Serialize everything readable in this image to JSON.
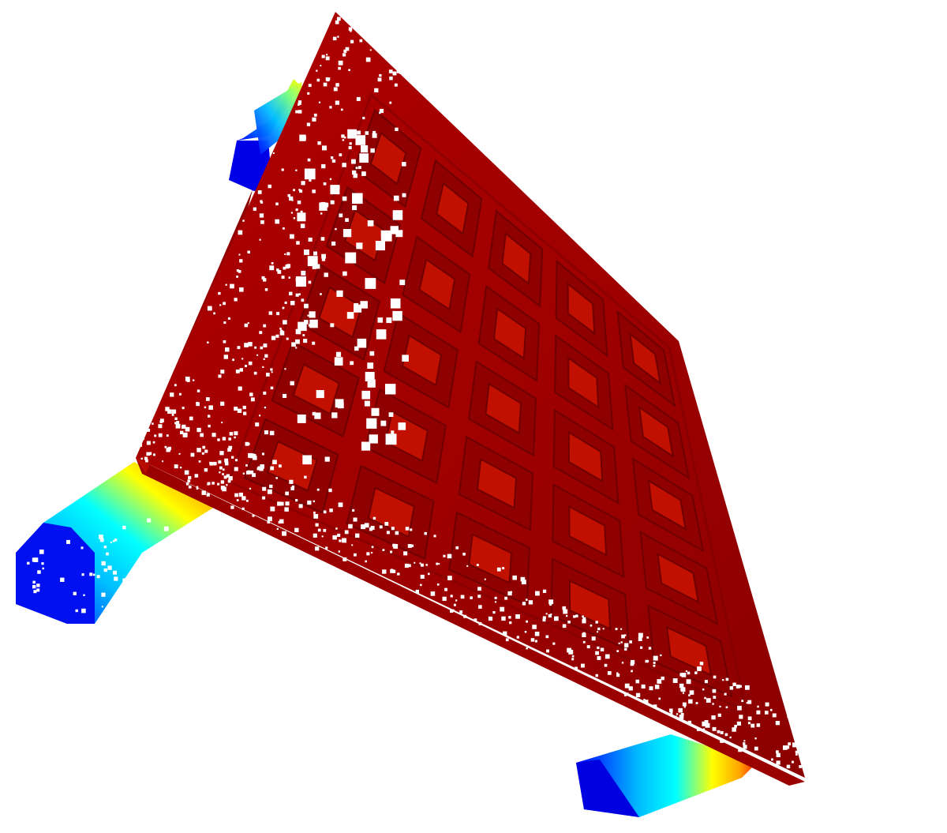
{
  "scene": {
    "subject": "point-cloud-table",
    "colormap": "jet",
    "colormap_stops": [
      "#00008b",
      "#0000ff",
      "#00bfff",
      "#00ffff",
      "#7fff7f",
      "#ffff00",
      "#ffa500",
      "#ff0000",
      "#8b0000"
    ],
    "background_color": "#ffffff",
    "tabletop_color": "#a30000",
    "tabletop_shadow_color": "#7a0000",
    "grid_rows": 5,
    "grid_cols": 5
  }
}
